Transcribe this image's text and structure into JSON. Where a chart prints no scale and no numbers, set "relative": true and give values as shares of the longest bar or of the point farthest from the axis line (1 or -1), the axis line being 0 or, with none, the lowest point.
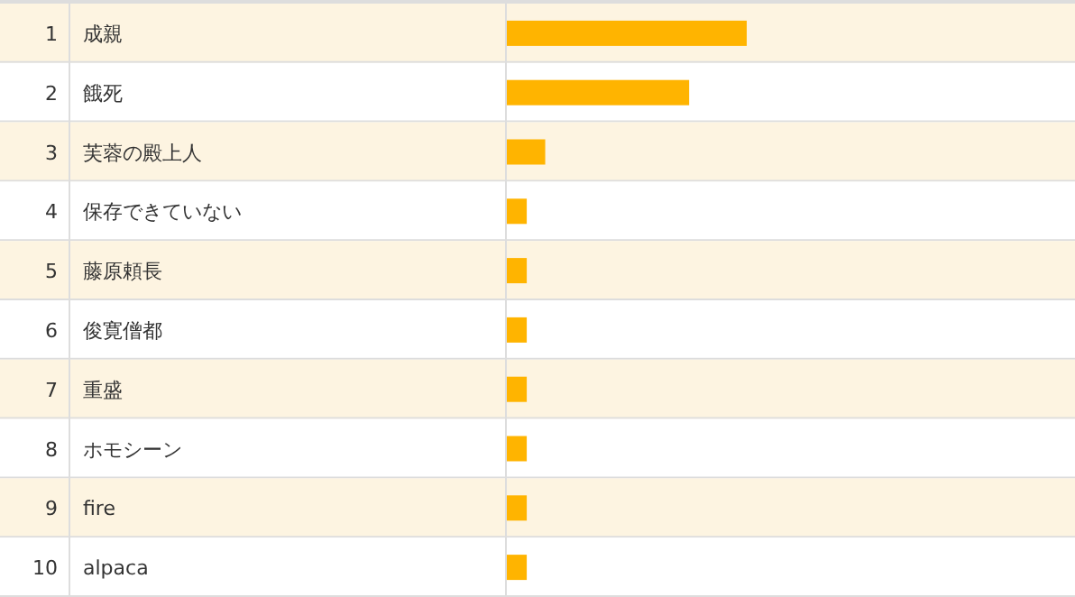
{
  "chart_data": {
    "type": "bar",
    "orientation": "horizontal",
    "relative": true,
    "categories": [
      "成親",
      "餓死",
      "芙蓉の殿上人",
      "保存できていない",
      "藤原頼長",
      "俊寛僧都",
      "重盛",
      "ホモシーン",
      "fire",
      "alpaca"
    ],
    "values": [
      1,
      0.76,
      0.16,
      0.083,
      0.083,
      0.083,
      0.083,
      0.083,
      0.083,
      0.083
    ],
    "color": "#ffb400",
    "annotations": [
      "1",
      "2",
      "3",
      "4",
      "5",
      "6",
      "7",
      "8",
      "9",
      "10"
    ]
  }
}
